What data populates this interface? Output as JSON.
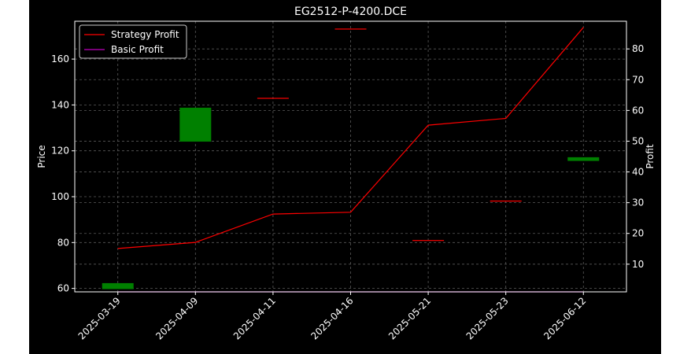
{
  "chart_data": {
    "type": "candlestick-with-line",
    "title": "EG2512-P-4200.DCE",
    "categories": [
      "2025-03-19",
      "2025-04-09",
      "2025-04-11",
      "2025-04-16",
      "2025-05-21",
      "2025-05-23",
      "2025-06-12"
    ],
    "ylabel_left": "Price",
    "ylabel_right": "Profit",
    "ylim_left": [
      58.5,
      176.5
    ],
    "ylim_right": [
      1.0,
      89.0
    ],
    "yticks_left": [
      60,
      80,
      100,
      120,
      140,
      160
    ],
    "yticks_right": [
      10,
      20,
      30,
      40,
      50,
      60,
      70,
      80
    ],
    "grid": true,
    "legend_position": "top-left",
    "candles": [
      {
        "x": "2025-03-19",
        "open": 59.7,
        "close": 62.3,
        "color": "#008000"
      },
      {
        "x": "2025-04-09",
        "open": 124.0,
        "close": 138.8,
        "color": "#008000"
      },
      {
        "x": "2025-04-11",
        "open": 143.1,
        "close": 143.1,
        "color": "#ff0000"
      },
      {
        "x": "2025-04-16",
        "open": 173.3,
        "close": 173.3,
        "color": "#ff0000"
      },
      {
        "x": "2025-05-21",
        "open": 81.1,
        "close": 81.1,
        "color": "#ff0000"
      },
      {
        "x": "2025-05-23",
        "open": 98.3,
        "close": 98.3,
        "color": "#ff0000"
      },
      {
        "x": "2025-06-12",
        "open": 115.6,
        "close": 117.2,
        "color": "#008000"
      }
    ],
    "series": [
      {
        "name": "Strategy Profit",
        "color": "#ff0000",
        "axis": "right",
        "values": [
          15.1,
          17.1,
          26.3,
          26.9,
          55.2,
          57.4,
          87.0
        ]
      },
      {
        "name": "Basic Profit",
        "color": "#bf00bf",
        "axis": "right",
        "values": [
          1.0,
          1.0,
          1.0,
          1.0,
          1.0,
          1.0,
          1.0
        ]
      }
    ]
  }
}
